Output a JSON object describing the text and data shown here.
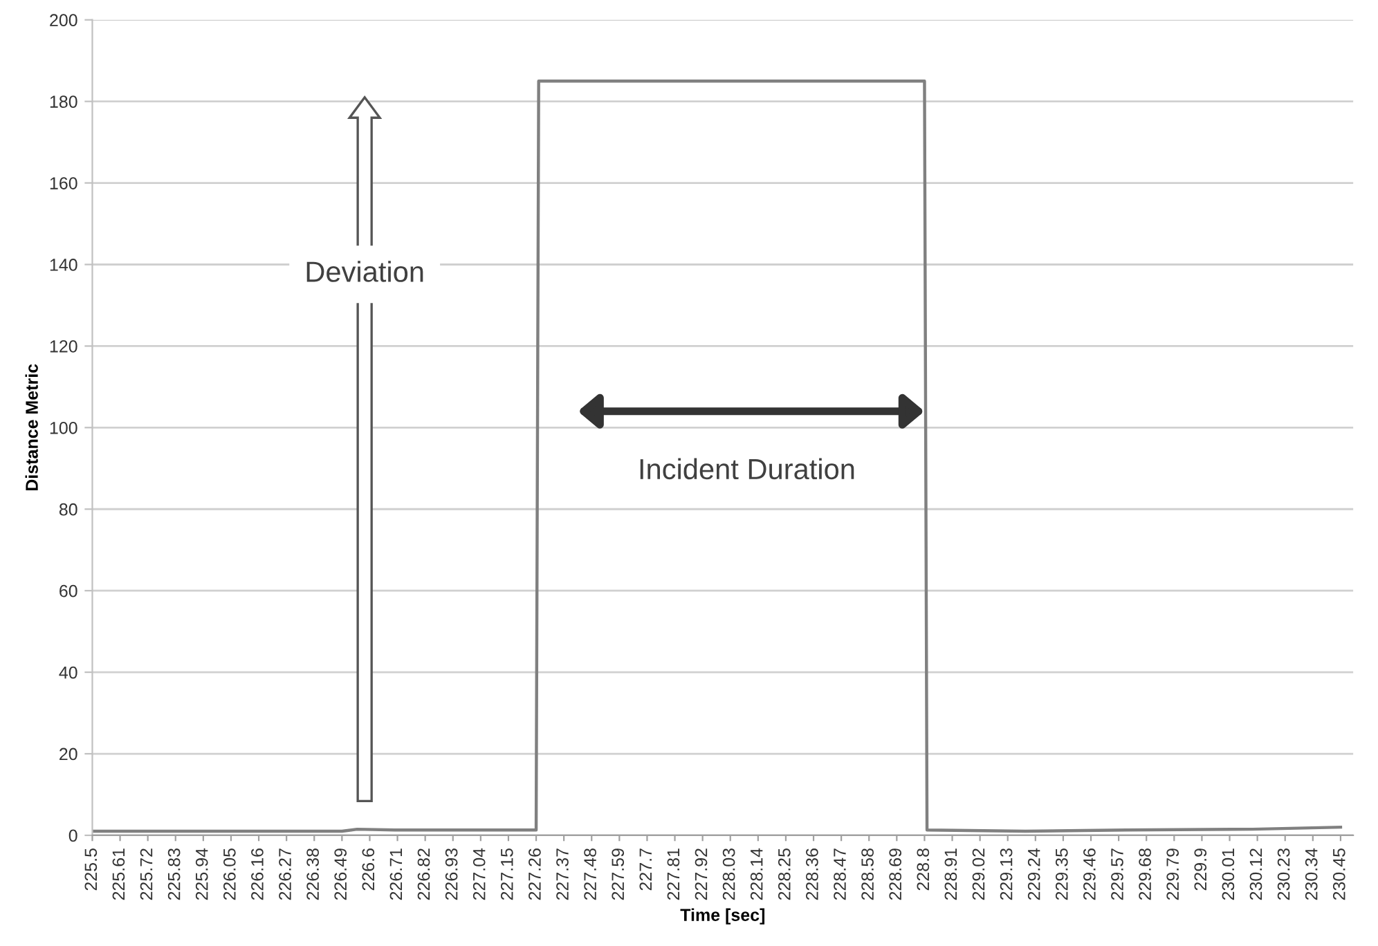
{
  "chart_data": {
    "type": "line",
    "xlabel": "Time [sec]",
    "ylabel": "Distance Metric",
    "x": [
      225.5,
      226.49,
      226.55,
      226.7,
      227.26,
      227.27,
      228.8,
      228.81,
      229.2,
      229.6,
      230.1,
      230.45
    ],
    "series": [
      {
        "color": "#808080",
        "values": [
          1,
          1,
          1.5,
          1.3,
          1.3,
          185,
          185,
          1.3,
          1,
          1.3,
          1.5,
          2
        ]
      }
    ],
    "ylim": [
      0,
      200
    ],
    "yticks": [
      0,
      20,
      40,
      60,
      80,
      100,
      120,
      140,
      160,
      180,
      200
    ],
    "xlim": [
      225.5,
      230.5
    ],
    "xticks": [
      225.5,
      225.61,
      225.72,
      225.83,
      225.94,
      226.05,
      226.16,
      226.27,
      226.38,
      226.49,
      226.6,
      226.71,
      226.82,
      226.93,
      227.04,
      227.15,
      227.26,
      227.37,
      227.48,
      227.59,
      227.7,
      227.81,
      227.92,
      228.03,
      228.14,
      228.25,
      228.36,
      228.47,
      228.58,
      228.69,
      228.8,
      228.91,
      229.02,
      229.13,
      229.24,
      229.35,
      229.46,
      229.57,
      229.68,
      229.79,
      229.9,
      230.01,
      230.12,
      230.23,
      230.34,
      230.45
    ],
    "grid": "y",
    "annotations": [
      "Deviation",
      "Incident Duration"
    ]
  }
}
